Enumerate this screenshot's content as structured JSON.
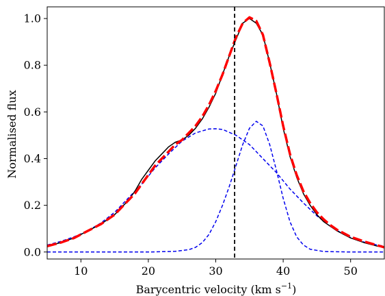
{
  "chart_data": {
    "type": "line",
    "xlabel": "Barycentric velocity (km s",
    "xlabel_sup": "−1",
    "xlabel_tail": ")",
    "ylabel": "Normalised flux",
    "xlim": [
      5,
      55
    ],
    "ylim": [
      -0.03,
      1.05
    ],
    "xticks": [
      10,
      20,
      30,
      40,
      50
    ],
    "yticks": [
      0.0,
      0.2,
      0.4,
      0.6,
      0.8,
      1.0
    ],
    "xtick_labels": [
      "10",
      "20",
      "30",
      "40",
      "50"
    ],
    "ytick_labels": [
      "0.0",
      "0.2",
      "0.4",
      "0.6",
      "0.8",
      "1.0"
    ],
    "grid": false,
    "vline": {
      "x": 32.8,
      "color": "#000000",
      "style": "dashed"
    },
    "series": [
      {
        "key": "observed",
        "color": "#000000",
        "style": "solid",
        "x": [
          5,
          7,
          9,
          11,
          13,
          15,
          17,
          18,
          19,
          20,
          21,
          22,
          23,
          24,
          25,
          26,
          27,
          28,
          29,
          30,
          31,
          32,
          33,
          34,
          35,
          36,
          37,
          38,
          39,
          40,
          41,
          42,
          43,
          44,
          45,
          46,
          47,
          48,
          50,
          52,
          54,
          55
        ],
        "y": [
          0.025,
          0.04,
          0.06,
          0.09,
          0.12,
          0.16,
          0.22,
          0.26,
          0.31,
          0.35,
          0.39,
          0.42,
          0.45,
          0.47,
          0.48,
          0.5,
          0.53,
          0.57,
          0.62,
          0.68,
          0.76,
          0.84,
          0.91,
          0.98,
          1.0,
          0.98,
          0.93,
          0.81,
          0.68,
          0.53,
          0.41,
          0.32,
          0.25,
          0.2,
          0.16,
          0.13,
          0.11,
          0.09,
          0.06,
          0.04,
          0.025,
          0.02
        ]
      },
      {
        "key": "fit",
        "color": "#ff0000",
        "style": "dashed-thick",
        "x": [
          5,
          7,
          9,
          11,
          13,
          15,
          17,
          18,
          19,
          20,
          21,
          22,
          23,
          24,
          25,
          26,
          27,
          28,
          29,
          30,
          31,
          32,
          33,
          34,
          35,
          36,
          37,
          38,
          39,
          40,
          41,
          42,
          43,
          44,
          45,
          46,
          47,
          48,
          50,
          52,
          54,
          55
        ],
        "y": [
          0.025,
          0.04,
          0.06,
          0.09,
          0.12,
          0.16,
          0.22,
          0.25,
          0.29,
          0.33,
          0.37,
          0.4,
          0.43,
          0.46,
          0.48,
          0.51,
          0.54,
          0.58,
          0.63,
          0.69,
          0.76,
          0.84,
          0.92,
          0.98,
          1.005,
          0.99,
          0.93,
          0.81,
          0.68,
          0.54,
          0.42,
          0.33,
          0.26,
          0.21,
          0.17,
          0.14,
          0.115,
          0.095,
          0.065,
          0.045,
          0.028,
          0.02
        ]
      },
      {
        "key": "component-broad",
        "color": "#0000ee",
        "style": "dashed",
        "x": [
          5,
          7,
          9,
          11,
          13,
          15,
          17,
          19,
          21,
          23,
          25,
          27,
          29,
          30,
          31,
          33,
          35,
          37,
          39,
          41,
          43,
          45,
          47,
          49,
          51,
          53,
          55
        ],
        "y": [
          0.03,
          0.045,
          0.065,
          0.09,
          0.125,
          0.17,
          0.23,
          0.29,
          0.36,
          0.42,
          0.475,
          0.51,
          0.527,
          0.528,
          0.525,
          0.5,
          0.46,
          0.4,
          0.34,
          0.27,
          0.21,
          0.155,
          0.11,
          0.075,
          0.05,
          0.035,
          0.025
        ]
      },
      {
        "key": "component-narrow",
        "color": "#0000ee",
        "style": "dashed",
        "x": [
          5,
          20,
          24,
          26,
          27,
          28,
          29,
          30,
          31,
          32,
          33,
          34,
          35,
          36,
          37,
          38,
          39,
          40,
          41,
          42,
          43,
          44,
          46,
          50,
          55
        ],
        "y": [
          0.0,
          0.0,
          0.003,
          0.01,
          0.02,
          0.04,
          0.075,
          0.13,
          0.2,
          0.28,
          0.37,
          0.46,
          0.53,
          0.56,
          0.54,
          0.46,
          0.35,
          0.23,
          0.13,
          0.065,
          0.03,
          0.012,
          0.002,
          0.0,
          0.0
        ]
      }
    ]
  }
}
